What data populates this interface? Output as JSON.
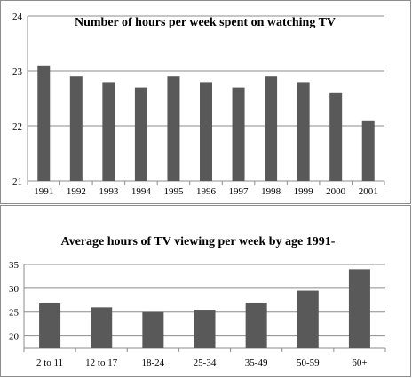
{
  "chart_data": [
    {
      "type": "bar",
      "title": "Number of hours per week spent on watching TV",
      "xlabel": "",
      "ylabel": "",
      "categories": [
        "1991",
        "1992",
        "1993",
        "1994",
        "1995",
        "1996",
        "1997",
        "1998",
        "1999",
        "2000",
        "2001"
      ],
      "values": [
        23.1,
        22.9,
        22.8,
        22.7,
        22.9,
        22.8,
        22.7,
        22.9,
        22.8,
        22.6,
        22.1
      ],
      "ylim": [
        21,
        24
      ],
      "yticks": [
        21,
        22,
        23,
        24
      ],
      "grid": true,
      "bar_color": "#595959"
    },
    {
      "type": "bar",
      "title": "Average hours of TV viewing per week by age 1991-",
      "xlabel": "",
      "ylabel": "",
      "categories": [
        "2 to 11",
        "12 to 17",
        "18-24",
        "25-34",
        "35-49",
        "50-59",
        "60+"
      ],
      "values": [
        27,
        26,
        25,
        25.5,
        27,
        29.5,
        34
      ],
      "ylim": [
        17.5,
        35
      ],
      "yticks": [
        20,
        25,
        30,
        35
      ],
      "grid": true,
      "bar_color": "#595959"
    }
  ]
}
